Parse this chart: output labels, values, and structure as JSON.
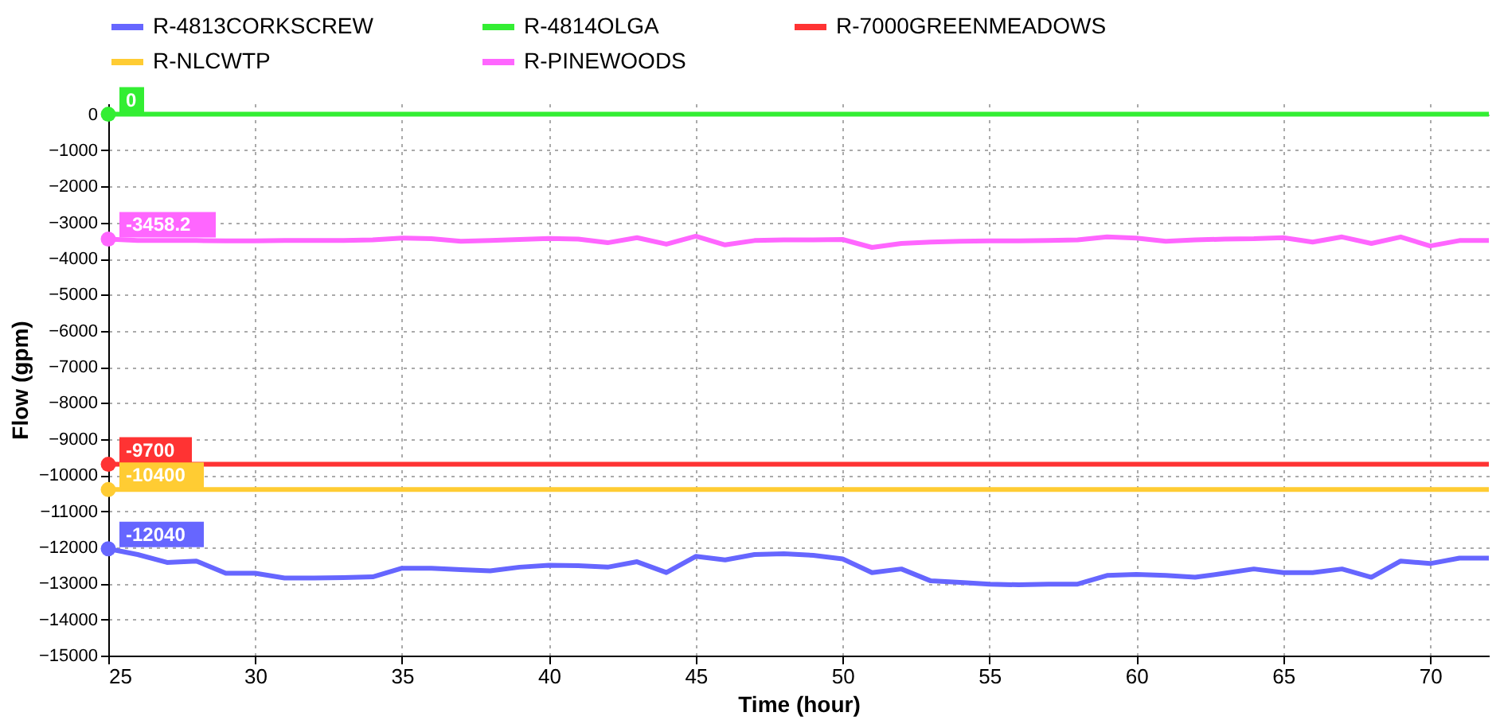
{
  "chart_data": {
    "type": "line",
    "xlabel": "Time (hour)",
    "ylabel": "Flow (gpm)",
    "x": [
      25,
      26,
      27,
      28,
      29,
      30,
      31,
      32,
      33,
      34,
      35,
      36,
      37,
      38,
      39,
      40,
      41,
      42,
      43,
      44,
      45,
      46,
      47,
      48,
      49,
      50,
      51,
      52,
      53,
      54,
      55,
      56,
      57,
      58,
      59,
      60,
      61,
      62,
      63,
      64,
      65,
      66,
      67,
      68,
      69,
      70,
      71,
      72
    ],
    "xlim": [
      25,
      72
    ],
    "xticks": [
      25,
      30,
      35,
      40,
      45,
      50,
      55,
      60,
      65,
      70
    ],
    "ylim": [
      -15000,
      300
    ],
    "yticks": [
      0,
      -1000,
      -2000,
      -3000,
      -4000,
      -5000,
      -6000,
      -7000,
      -8000,
      -9000,
      -10000,
      -11000,
      -12000,
      -13000,
      -14000,
      -15000
    ],
    "grid": true,
    "legend": "top",
    "marker": "none",
    "line_style": "solid",
    "series": [
      {
        "name": "R-4813CORKSCREW",
        "color": "#6666ff",
        "values": [
          -12040,
          -12200,
          -12420,
          -12380,
          -12720,
          -12720,
          -12850,
          -12850,
          -12840,
          -12820,
          -12580,
          -12580,
          -12620,
          -12650,
          -12550,
          -12500,
          -12510,
          -12550,
          -12400,
          -12700,
          -12250,
          -12350,
          -12200,
          -12180,
          -12220,
          -12320,
          -12700,
          -12600,
          -12930,
          -12970,
          -13020,
          -13040,
          -13020,
          -13020,
          -12780,
          -12750,
          -12780,
          -12830,
          -12720,
          -12600,
          -12700,
          -12700,
          -12600,
          -12830,
          -12380,
          -12450,
          -12300,
          -12300
        ],
        "value_labels": [
          "-12040",
          null,
          null,
          null,
          null,
          null,
          null,
          null,
          null,
          null,
          null,
          null,
          null,
          null,
          null,
          null,
          null,
          null,
          null,
          null,
          null,
          null,
          null,
          null,
          null,
          null,
          null,
          null,
          null,
          null,
          null,
          null,
          null,
          null,
          null,
          null,
          null,
          null,
          null,
          null,
          null,
          null,
          null,
          null,
          null,
          null,
          null,
          null
        ]
      },
      {
        "name": "R-4814OLGA",
        "color": "#33ee33",
        "values": [
          0,
          0,
          0,
          0,
          0,
          0,
          0,
          0,
          0,
          0,
          0,
          0,
          0,
          0,
          0,
          0,
          0,
          0,
          0,
          0,
          0,
          0,
          0,
          0,
          0,
          0,
          0,
          0,
          0,
          0,
          0,
          0,
          0,
          0,
          0,
          0,
          0,
          0,
          0,
          0,
          0,
          0,
          0,
          0,
          0,
          0,
          0,
          0
        ],
        "value_labels": [
          "0",
          null,
          null,
          null,
          null,
          null,
          null,
          null,
          null,
          null,
          null,
          null,
          null,
          null,
          null,
          null,
          null,
          null,
          null,
          null,
          null,
          null,
          null,
          null,
          null,
          null,
          null,
          null,
          null,
          null,
          null,
          null,
          null,
          null,
          null,
          null,
          null,
          null,
          null,
          null,
          null,
          null,
          null,
          null,
          null,
          null,
          null,
          null
        ]
      },
      {
        "name": "R-7000GREENMEADOWS",
        "color": "#ff3333",
        "values": [
          -9700,
          -9700,
          -9700,
          -9700,
          -9700,
          -9700,
          -9700,
          -9700,
          -9700,
          -9700,
          -9700,
          -9700,
          -9700,
          -9700,
          -9700,
          -9700,
          -9700,
          -9700,
          -9700,
          -9700,
          -9700,
          -9700,
          -9700,
          -9700,
          -9700,
          -9700,
          -9700,
          -9700,
          -9700,
          -9700,
          -9700,
          -9700,
          -9700,
          -9700,
          -9700,
          -9700,
          -9700,
          -9700,
          -9700,
          -9700,
          -9700,
          -9700,
          -9700,
          -9700,
          -9700,
          -9700,
          -9700,
          -9700
        ],
        "value_labels": [
          "-9700",
          null,
          null,
          null,
          null,
          null,
          null,
          null,
          null,
          null,
          null,
          null,
          null,
          null,
          null,
          null,
          null,
          null,
          null,
          null,
          null,
          null,
          null,
          null,
          null,
          null,
          null,
          null,
          null,
          null,
          null,
          null,
          null,
          null,
          null,
          null,
          null,
          null,
          null,
          null,
          null,
          null,
          null,
          null,
          null,
          null,
          null,
          null
        ]
      },
      {
        "name": "R-NLCWTP",
        "color": "#ffcc33",
        "values": [
          -10400,
          -10400,
          -10400,
          -10400,
          -10400,
          -10400,
          -10400,
          -10400,
          -10400,
          -10400,
          -10400,
          -10400,
          -10400,
          -10400,
          -10400,
          -10400,
          -10400,
          -10400,
          -10400,
          -10400,
          -10400,
          -10400,
          -10400,
          -10400,
          -10400,
          -10400,
          -10400,
          -10400,
          -10400,
          -10400,
          -10400,
          -10400,
          -10400,
          -10400,
          -10400,
          -10400,
          -10400,
          -10400,
          -10400,
          -10400,
          -10400,
          -10400,
          -10400,
          -10400,
          -10400,
          -10400,
          -10400,
          -10400
        ],
        "value_labels": [
          "-10400",
          null,
          null,
          null,
          null,
          null,
          null,
          null,
          null,
          null,
          null,
          null,
          null,
          null,
          null,
          null,
          null,
          null,
          null,
          null,
          null,
          null,
          null,
          null,
          null,
          null,
          null,
          null,
          null,
          null,
          null,
          null,
          null,
          null,
          null,
          null,
          null,
          null,
          null,
          null,
          null,
          null,
          null,
          null,
          null,
          null,
          null,
          null
        ]
      },
      {
        "name": "R-PINEWOODS",
        "color": "#ff66ff",
        "values": [
          -3458.2,
          -3500,
          -3500,
          -3500,
          -3510,
          -3510,
          -3500,
          -3500,
          -3500,
          -3480,
          -3430,
          -3450,
          -3520,
          -3500,
          -3470,
          -3440,
          -3460,
          -3560,
          -3420,
          -3600,
          -3380,
          -3620,
          -3500,
          -3480,
          -3480,
          -3470,
          -3690,
          -3580,
          -3540,
          -3520,
          -3510,
          -3510,
          -3500,
          -3480,
          -3400,
          -3430,
          -3520,
          -3480,
          -3460,
          -3450,
          -3420,
          -3540,
          -3400,
          -3580,
          -3400,
          -3650,
          -3500,
          -3500
        ],
        "value_labels": [
          "-3458.2",
          null,
          null,
          null,
          null,
          null,
          null,
          null,
          null,
          null,
          null,
          null,
          null,
          null,
          null,
          null,
          null,
          null,
          null,
          null,
          null,
          null,
          null,
          null,
          null,
          null,
          null,
          null,
          null,
          null,
          null,
          null,
          null,
          null,
          null,
          null,
          null,
          null,
          null,
          null,
          null,
          null,
          null,
          null,
          null,
          null,
          null,
          null
        ]
      }
    ]
  }
}
